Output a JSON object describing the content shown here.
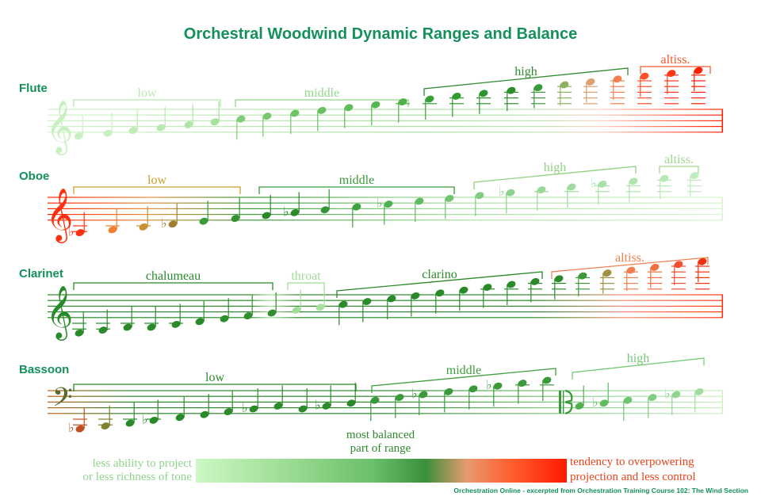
{
  "title": "Orchestral Woodwind Dynamic Ranges and Balance",
  "colors": {
    "title": "#14905a",
    "instrument_label": "#14905a",
    "pale_green": "#c8f0c0",
    "balanced_green": "#2f8a2f",
    "overpowering_red": "#ff2000"
  },
  "instruments": [
    {
      "name": "Flute",
      "staff_top": 138,
      "clef": "treble",
      "labels": [
        {
          "text": "low",
          "x1": 93,
          "x2": 278,
          "y": 126,
          "color": "#b8e8b0"
        },
        {
          "text": "middle",
          "x1": 297,
          "x2": 515,
          "y": 126,
          "color": "#8ed88a"
        },
        {
          "text": "high",
          "x1": 535,
          "x2": 792,
          "y": 112,
          "y2": 86,
          "slant": true,
          "color": "#2f8a2f"
        },
        {
          "text": "altiss.",
          "x1": 808,
          "x2": 896,
          "y": 84,
          "color": "#f05a30"
        }
      ],
      "notes": [
        {
          "x": 99,
          "p": 0,
          "c": "#c8f0c0"
        },
        {
          "x": 136,
          "p": 1,
          "c": "#c8f0c0"
        },
        {
          "x": 168,
          "p": 2,
          "c": "#c0ecb8"
        },
        {
          "x": 203,
          "p": 3,
          "c": "#b8e8b0"
        },
        {
          "x": 238,
          "p": 4,
          "c": "#b0e4a8"
        },
        {
          "x": 271,
          "p": 5,
          "c": "#a8e0a0"
        },
        {
          "x": 304,
          "p": 6,
          "c": "#80cc78"
        },
        {
          "x": 337,
          "p": 7,
          "c": "#78c870"
        },
        {
          "x": 372,
          "p": 8,
          "c": "#70c468"
        },
        {
          "x": 406,
          "p": 9,
          "c": "#68c060"
        },
        {
          "x": 440,
          "p": 10,
          "c": "#60bc58"
        },
        {
          "x": 474,
          "p": 11,
          "c": "#58b650"
        },
        {
          "x": 508,
          "p": 12,
          "c": "#50b048"
        },
        {
          "x": 542,
          "p": 13,
          "c": "#38a038"
        },
        {
          "x": 576,
          "p": 14,
          "c": "#329a32"
        },
        {
          "x": 610,
          "p": 15,
          "c": "#2d942d"
        },
        {
          "x": 645,
          "p": 16,
          "c": "#2a8e2a"
        },
        {
          "x": 679,
          "p": 17,
          "c": "#3a9a3a"
        },
        {
          "x": 712,
          "p": 18,
          "c": "#90b060"
        },
        {
          "x": 745,
          "p": 19,
          "c": "#e0a070"
        },
        {
          "x": 779,
          "p": 20,
          "c": "#f08050"
        },
        {
          "x": 813,
          "p": 21,
          "c": "#ff5028"
        },
        {
          "x": 847,
          "p": 22,
          "c": "#ff3818"
        },
        {
          "x": 881,
          "p": 23,
          "c": "#ff2000"
        }
      ],
      "staff_colors": [
        [
          "0",
          "#d0f4c8"
        ],
        [
          "0.55",
          "#a8e0a0"
        ],
        [
          "0.72",
          "#b8e8b0"
        ],
        [
          "0.82",
          "#ffd0c0"
        ],
        [
          "1",
          "#ff2000"
        ]
      ],
      "clef_color": "#c8f0c0"
    },
    {
      "name": "Oboe",
      "staff_top": 249,
      "clef": "treble",
      "labels": [
        {
          "text": "low",
          "x1": 93,
          "x2": 303,
          "y": 236,
          "color": "#c8a030"
        },
        {
          "text": "middle",
          "x1": 327,
          "x2": 573,
          "y": 236,
          "color": "#3a9a3a"
        },
        {
          "text": "high",
          "x1": 598,
          "x2": 802,
          "y": 230,
          "y2": 210,
          "slant": true,
          "color": "#90d080"
        },
        {
          "text": "altiss.",
          "x1": 832,
          "x2": 881,
          "y": 210,
          "color": "#a0d890"
        }
      ],
      "notes": [
        {
          "x": 101,
          "p": -3,
          "c": "#ff3010",
          "acc": "b"
        },
        {
          "x": 142,
          "p": -2,
          "c": "#f08030"
        },
        {
          "x": 181,
          "p": -1,
          "c": "#c89030"
        },
        {
          "x": 218,
          "p": 0,
          "c": "#a08030",
          "acc": "b"
        },
        {
          "x": 257,
          "p": 1,
          "c": "#3a9a3a"
        },
        {
          "x": 297,
          "p": 2,
          "c": "#329232"
        },
        {
          "x": 336,
          "p": 3,
          "c": "#2a8a2a"
        },
        {
          "x": 372,
          "p": 4,
          "c": "#2a8a2a",
          "acc": "b"
        },
        {
          "x": 410,
          "p": 5,
          "c": "#35953a"
        },
        {
          "x": 450,
          "p": 6,
          "c": "#40a040"
        },
        {
          "x": 490,
          "p": 7,
          "c": "#50b050",
          "acc": "b"
        },
        {
          "x": 529,
          "p": 8,
          "c": "#60bc60"
        },
        {
          "x": 567,
          "p": 9,
          "c": "#70c470"
        },
        {
          "x": 605,
          "p": 10,
          "c": "#80cc80"
        },
        {
          "x": 644,
          "p": 11,
          "c": "#8cd28c",
          "acc": "b"
        },
        {
          "x": 683,
          "p": 12,
          "c": "#98d898"
        },
        {
          "x": 721,
          "p": 13,
          "c": "#a0dca0"
        },
        {
          "x": 760,
          "p": 14,
          "c": "#a8e0a8",
          "acc": "b"
        },
        {
          "x": 799,
          "p": 15,
          "c": "#b0e4b0"
        },
        {
          "x": 838,
          "p": 16,
          "c": "#b8e8b8"
        },
        {
          "x": 876,
          "p": 17,
          "c": "#c0ecc0"
        }
      ],
      "staff_colors": [
        [
          "0",
          "#ff2000"
        ],
        [
          "0.15",
          "#e09040"
        ],
        [
          "0.3",
          "#3a9a3a"
        ],
        [
          "0.6",
          "#a8e0a0"
        ],
        [
          "1",
          "#d8f4d0"
        ]
      ],
      "clef_color": "#ff3010"
    },
    {
      "name": "Clarinet",
      "staff_top": 372,
      "clef": "treble",
      "labels": [
        {
          "text": "chalumeau",
          "x1": 93,
          "x2": 344,
          "y": 357,
          "color": "#2a8a2a"
        },
        {
          "text": "throat",
          "x1": 363,
          "x2": 409,
          "y": 357,
          "color": "#a0dc98"
        },
        {
          "text": "clarino",
          "x1": 425,
          "x2": 684,
          "y": 367,
          "y2": 343,
          "slant": true,
          "color": "#2a8a2a"
        },
        {
          "text": "altiss.",
          "x1": 696,
          "x2": 893,
          "y": 343,
          "y2": 325,
          "slant": true,
          "color": "#f08050"
        }
      ],
      "notes": [
        {
          "x": 100,
          "p": -4,
          "c": "#2a8a2a"
        },
        {
          "x": 130,
          "p": -3,
          "c": "#2a8a2a"
        },
        {
          "x": 161,
          "p": -2,
          "c": "#2a8a2a"
        },
        {
          "x": 191,
          "p": -2,
          "c": "#2a8a2a"
        },
        {
          "x": 222,
          "p": -1,
          "c": "#2a8a2a"
        },
        {
          "x": 252,
          "p": 0,
          "c": "#2a8a2a"
        },
        {
          "x": 283,
          "p": 1,
          "c": "#2d8d2d"
        },
        {
          "x": 313,
          "p": 2,
          "c": "#309030"
        },
        {
          "x": 343,
          "p": 3,
          "c": "#309030"
        },
        {
          "x": 374,
          "p": 4,
          "c": "#a0dc98"
        },
        {
          "x": 404,
          "p": 5,
          "c": "#a8e0a0"
        },
        {
          "x": 433,
          "p": 6,
          "c": "#2a8a2a"
        },
        {
          "x": 463,
          "p": 7,
          "c": "#2a8a2a"
        },
        {
          "x": 494,
          "p": 8,
          "c": "#2a8a2a"
        },
        {
          "x": 524,
          "p": 9,
          "c": "#2a8a2a"
        },
        {
          "x": 555,
          "p": 10,
          "c": "#2a8a2a"
        },
        {
          "x": 585,
          "p": 11,
          "c": "#2a8a2a"
        },
        {
          "x": 615,
          "p": 12,
          "c": "#2a8a2a"
        },
        {
          "x": 645,
          "p": 13,
          "c": "#2a8a2a"
        },
        {
          "x": 675,
          "p": 14,
          "c": "#2a8a2a"
        },
        {
          "x": 705,
          "p": 15,
          "c": "#2a8a2a"
        },
        {
          "x": 735,
          "p": 16,
          "c": "#3a9a3a"
        },
        {
          "x": 766,
          "p": 17,
          "c": "#a09040"
        },
        {
          "x": 796,
          "p": 18,
          "c": "#f08050"
        },
        {
          "x": 826,
          "p": 19,
          "c": "#f07040"
        },
        {
          "x": 856,
          "p": 20,
          "c": "#f05030"
        },
        {
          "x": 886,
          "p": 21,
          "c": "#f03010"
        }
      ],
      "staff_colors": [
        [
          "0",
          "#2a8a2a"
        ],
        [
          "0.3",
          "#2a8a2a"
        ],
        [
          "0.33",
          "#a8e0a0"
        ],
        [
          "0.37",
          "#2a8a2a"
        ],
        [
          "0.72",
          "#2a8a2a"
        ],
        [
          "0.85",
          "#f09070"
        ],
        [
          "1",
          "#ff3010"
        ]
      ],
      "clef_color": "#2a8a2a"
    },
    {
      "name": "Bassoon",
      "staff_top": 493,
      "clef": "bass",
      "labels": [
        {
          "text": "low",
          "x1": 93,
          "x2": 449,
          "y": 485,
          "color": "#2a8a2a"
        },
        {
          "text": "middle",
          "x1": 469,
          "x2": 701,
          "y": 487,
          "y2": 465,
          "slant": true,
          "color": "#40a040"
        },
        {
          "text": "high",
          "x1": 722,
          "x2": 888,
          "y": 470,
          "y2": 452,
          "slant": true,
          "color": "#78c878"
        }
      ],
      "notes": [
        {
          "x": 101,
          "p": -4,
          "c": "#c05020",
          "acc": "b"
        },
        {
          "x": 133,
          "p": -3,
          "c": "#808030"
        },
        {
          "x": 164,
          "p": -2,
          "c": "#2a8a2a"
        },
        {
          "x": 194,
          "p": -1,
          "c": "#2a8a2a",
          "acc": "b"
        },
        {
          "x": 227,
          "p": 0,
          "c": "#2a8a2a"
        },
        {
          "x": 258,
          "p": 1,
          "c": "#2a8a2a"
        },
        {
          "x": 288,
          "p": 2,
          "c": "#2a8a2a"
        },
        {
          "x": 320,
          "p": 3,
          "c": "#2a8a2a",
          "acc": "b"
        },
        {
          "x": 351,
          "p": 4,
          "c": "#2a8a2a"
        },
        {
          "x": 382,
          "p": 3,
          "c": "#2a8a2a"
        },
        {
          "x": 412,
          "p": 4,
          "c": "#2a8a2a",
          "acc": "b"
        },
        {
          "x": 443,
          "p": 5,
          "c": "#2a8a2a"
        },
        {
          "x": 473,
          "p": 6,
          "c": "#3a9a3a"
        },
        {
          "x": 504,
          "p": 7,
          "c": "#3a9a3a"
        },
        {
          "x": 534,
          "p": 8,
          "c": "#3a9a3a",
          "acc": "b"
        },
        {
          "x": 566,
          "p": 9,
          "c": "#3a9a3a"
        },
        {
          "x": 597,
          "p": 10,
          "c": "#3a9a3a"
        },
        {
          "x": 628,
          "p": 11,
          "c": "#3a9a3a",
          "acc": "b"
        },
        {
          "x": 659,
          "p": 12,
          "c": "#3a9a3a"
        },
        {
          "x": 690,
          "p": 13,
          "c": "#3a9a3a"
        },
        {
          "x": 731,
          "p": 4,
          "c": "#50b050"
        },
        {
          "x": 762,
          "p": 5,
          "c": "#60bc60",
          "acc": "b"
        },
        {
          "x": 792,
          "p": 6,
          "c": "#70c470"
        },
        {
          "x": 823,
          "p": 7,
          "c": "#80cc80"
        },
        {
          "x": 853,
          "p": 8,
          "c": "#90d490",
          "acc": "b"
        },
        {
          "x": 882,
          "p": 9,
          "c": "#a0dca0"
        }
      ],
      "staff_colors": [
        [
          "0",
          "#c06020"
        ],
        [
          "0.12",
          "#2a8a2a"
        ],
        [
          "0.5",
          "#2a8a2a"
        ],
        [
          "0.8",
          "#90d490"
        ],
        [
          "1",
          "#d0f0c8"
        ]
      ],
      "clef_color": "#5a6a2a",
      "alto_clef_x": 705
    }
  ],
  "legend": {
    "left_line1": "less ability to project",
    "left_line2": "or less richness of tone",
    "middle_line1": "most balanced",
    "middle_line2": "part of range",
    "right_line1": "tendency to overpowering",
    "right_line2": "projection and less control"
  },
  "credit": "Orchestration Online - excerpted from Orchestration Training Course 102: The Wind Section"
}
